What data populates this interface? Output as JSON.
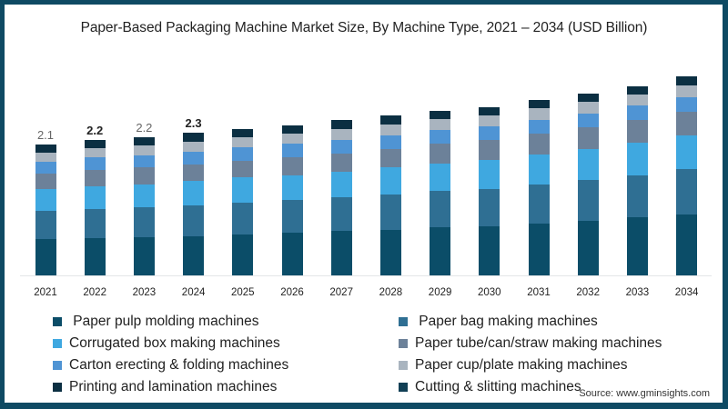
{
  "title": "Paper-Based Packaging Machine Market Size, By Machine Type, 2021 – 2034 (USD Billion)",
  "source": "Source: www.gminsights.com",
  "colors": {
    "frame": "#0e4a63",
    "pulp": "#0b4d68",
    "bag": "#2f6f93",
    "corrugated": "#3fa8e0",
    "tube": "#6c8199",
    "carton": "#4f94d4",
    "cup": "#a9b4bf",
    "printing": "#0b2f42",
    "cutting": "#113f55"
  },
  "legend": {
    "left": [
      {
        "label": " Paper pulp molding machines",
        "color": "#0b4d68"
      },
      {
        "label": "Corrugated box making machines",
        "color": "#3fa8e0"
      },
      {
        "label": "Carton erecting & folding machines",
        "color": "#4f94d4"
      },
      {
        "label": "Printing and lamination machines",
        "color": "#0b2f42"
      }
    ],
    "right": [
      {
        "label": " Paper bag making machines",
        "color": "#2f6f93"
      },
      {
        "label": "Paper tube/can/straw making machines",
        "color": "#6c8199"
      },
      {
        "label": "Paper cup/plate making machines",
        "color": "#a9b4bf"
      },
      {
        "label": "Cutting & slitting machines",
        "color": "#113f55"
      }
    ]
  },
  "value_labels": [
    {
      "year": "2021",
      "text": "2.1"
    },
    {
      "year": "2022",
      "text": "2.2"
    },
    {
      "year": "2023",
      "text": "2.2"
    },
    {
      "year": "2024",
      "text": "2.3"
    }
  ],
  "chart_data": {
    "type": "bar",
    "stacked": true,
    "title": "Paper-Based Packaging Machine Market Size, By Machine Type, 2021 – 2034 (USD Billion)",
    "xlabel": "",
    "ylabel": "USD Billion",
    "ylim": [
      0,
      3.4
    ],
    "grid": false,
    "legend_position": "bottom",
    "categories": [
      "2021",
      "2022",
      "2023",
      "2024",
      "2025",
      "2026",
      "2027",
      "2028",
      "2029",
      "2030",
      "2031",
      "2032",
      "2033",
      "2034"
    ],
    "series": [
      {
        "name": "Paper pulp molding machines",
        "color": "#0b4d68",
        "values": [
          0.58,
          0.6,
          0.61,
          0.63,
          0.66,
          0.69,
          0.71,
          0.73,
          0.77,
          0.79,
          0.83,
          0.88,
          0.93,
          0.98
        ]
      },
      {
        "name": "Paper bag making machines",
        "color": "#2f6f93",
        "values": [
          0.45,
          0.47,
          0.48,
          0.5,
          0.51,
          0.52,
          0.55,
          0.57,
          0.58,
          0.6,
          0.63,
          0.65,
          0.68,
          0.73
        ]
      },
      {
        "name": "Corrugated box making machines",
        "color": "#3fa8e0",
        "values": [
          0.35,
          0.36,
          0.37,
          0.38,
          0.4,
          0.4,
          0.41,
          0.43,
          0.45,
          0.46,
          0.48,
          0.5,
          0.52,
          0.54
        ]
      },
      {
        "name": "Paper tube/can/straw making machines",
        "color": "#6c8199",
        "values": [
          0.25,
          0.26,
          0.27,
          0.27,
          0.27,
          0.28,
          0.29,
          0.3,
          0.31,
          0.32,
          0.33,
          0.34,
          0.36,
          0.38
        ]
      },
      {
        "name": "Carton erecting & folding machines",
        "color": "#4f94d4",
        "values": [
          0.19,
          0.2,
          0.2,
          0.21,
          0.21,
          0.22,
          0.22,
          0.22,
          0.22,
          0.22,
          0.23,
          0.23,
          0.23,
          0.23
        ]
      },
      {
        "name": "Paper cup/plate making machines",
        "color": "#a9b4bf",
        "values": [
          0.15,
          0.15,
          0.16,
          0.16,
          0.16,
          0.16,
          0.17,
          0.17,
          0.17,
          0.17,
          0.18,
          0.18,
          0.18,
          0.19
        ]
      },
      {
        "name": "Printing and lamination machines",
        "color": "#0b2f42",
        "values": [
          0.13,
          0.13,
          0.13,
          0.14,
          0.14,
          0.14,
          0.14,
          0.14,
          0.14,
          0.14,
          0.14,
          0.14,
          0.14,
          0.15
        ]
      },
      {
        "name": "Cutting & slitting machines",
        "color": "#113f55",
        "values": [
          0,
          0,
          0,
          0,
          0,
          0,
          0,
          0,
          0,
          0,
          0,
          0,
          0,
          0
        ]
      }
    ],
    "totals_labeled": {
      "2021": 2.1,
      "2022": 2.2,
      "2023": 2.2,
      "2024": 2.3
    },
    "totals_estimated": [
      2.1,
      2.17,
      2.22,
      2.29,
      2.35,
      2.41,
      2.49,
      2.56,
      2.64,
      2.7,
      2.82,
      2.92,
      3.04,
      3.2
    ]
  }
}
